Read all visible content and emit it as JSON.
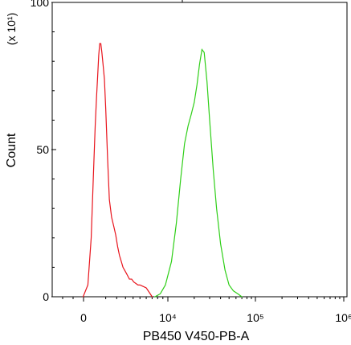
{
  "chart_data": {
    "type": "line",
    "title": "",
    "xlabel": "PB450 V450-PB-A",
    "ylabel": "Count",
    "y_scale_note": "(x 10¹)",
    "x_scale": "logicle",
    "xlim": [
      -3000,
      1000000
    ],
    "ylim": [
      0,
      100
    ],
    "grid": false,
    "legend": "none",
    "y_ticks": [
      {
        "value": 0,
        "label": "0"
      },
      {
        "value": 50,
        "label": "50"
      },
      {
        "value": 100,
        "label": "100"
      }
    ],
    "x_ticks": [
      {
        "value": 0,
        "label": "0"
      },
      {
        "value": 10000,
        "label": "10⁴"
      },
      {
        "value": 100000,
        "label": "10⁵"
      },
      {
        "value": 1000000,
        "label": "10⁶"
      }
    ],
    "series": [
      {
        "color": "#e8141c",
        "x": [
          -40,
          60,
          160,
          260,
          330,
          400,
          460,
          520,
          580,
          650,
          720,
          800,
          900,
          1000,
          1150,
          1300,
          1500,
          1700,
          1900,
          2100,
          2300,
          2500,
          2700,
          2900,
          3100,
          3300,
          3500,
          3800,
          4100,
          4400,
          4700,
          5000,
          5500,
          6000,
          6500,
          7000
        ],
        "y": [
          0,
          4,
          20,
          44,
          58,
          68,
          75,
          82,
          86,
          86,
          83,
          79,
          74,
          64,
          47,
          33,
          27,
          24,
          21,
          17,
          14,
          12,
          10,
          9,
          8,
          7,
          6,
          6,
          5,
          4.5,
          4,
          4,
          3.5,
          3,
          1.5,
          0
        ]
      },
      {
        "color": "#2fcf18",
        "x": [
          7500,
          8500,
          9500,
          11000,
          12500,
          14000,
          15500,
          17000,
          18500,
          20000,
          21500,
          23000,
          24500,
          26000,
          28000,
          30000,
          33000,
          36000,
          40000,
          45000,
          50000,
          56000,
          63000,
          70000
        ],
        "y": [
          0,
          1,
          4,
          12,
          25,
          40,
          52,
          58,
          62,
          66,
          72,
          79,
          84,
          83,
          73,
          60,
          43,
          30,
          18,
          9,
          4,
          2,
          1,
          0
        ]
      }
    ]
  }
}
